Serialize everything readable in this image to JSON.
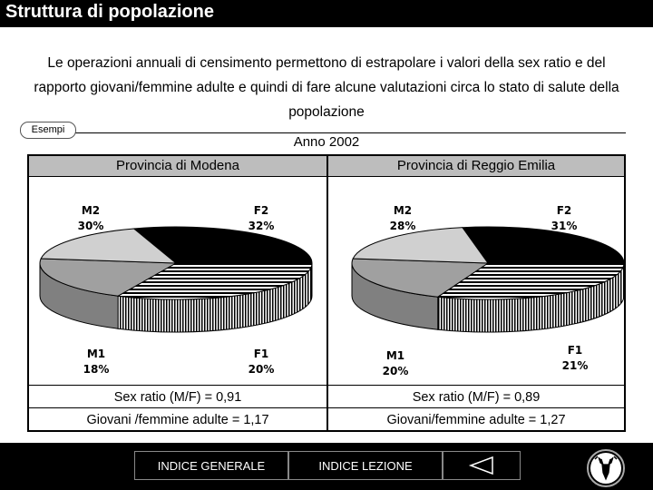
{
  "header": {
    "title": "Struttura di popolazione"
  },
  "intro": {
    "text": "Le operazioni annuali di censimento permettono di estrapolare i valori della sex ratio e del rapporto giovani/femmine adulte e quindi di fare alcune valutazioni circa lo stato di salute della popolazione",
    "badge": "Esempi"
  },
  "section": {
    "year_label": "Anno 2002"
  },
  "colors": {
    "M2": "#000000",
    "F2": "#ffffff",
    "F1": "#a0a0a0",
    "M1": "#d0d0d0"
  },
  "chart_data": [
    {
      "type": "pie",
      "title": "Provincia di Modena",
      "categories": [
        "M2",
        "F2",
        "F1",
        "M1"
      ],
      "values": [
        30,
        32,
        20,
        18
      ],
      "labels": [
        "30%",
        "32%",
        "20%",
        "18%"
      ],
      "stats": [
        "Sex ratio (M/F) = 0,91",
        "Giovani /femmine adulte = 1,17"
      ]
    },
    {
      "type": "pie",
      "title": "Provincia di Reggio Emilia",
      "categories": [
        "M2",
        "F2",
        "F1",
        "M1"
      ],
      "values": [
        28,
        31,
        21,
        20
      ],
      "labels": [
        "28%",
        "31%",
        "21%",
        "20%"
      ],
      "stats": [
        "Sex ratio (M/F) = 0,89",
        "Giovani/femmine adulte = 1,27"
      ]
    }
  ],
  "footer": {
    "nav1": "INDICE GENERALE",
    "nav2": "INDICE LEZIONE",
    "back_icon": "triangle-left-icon",
    "logo_icon": "deer-logo-icon"
  }
}
